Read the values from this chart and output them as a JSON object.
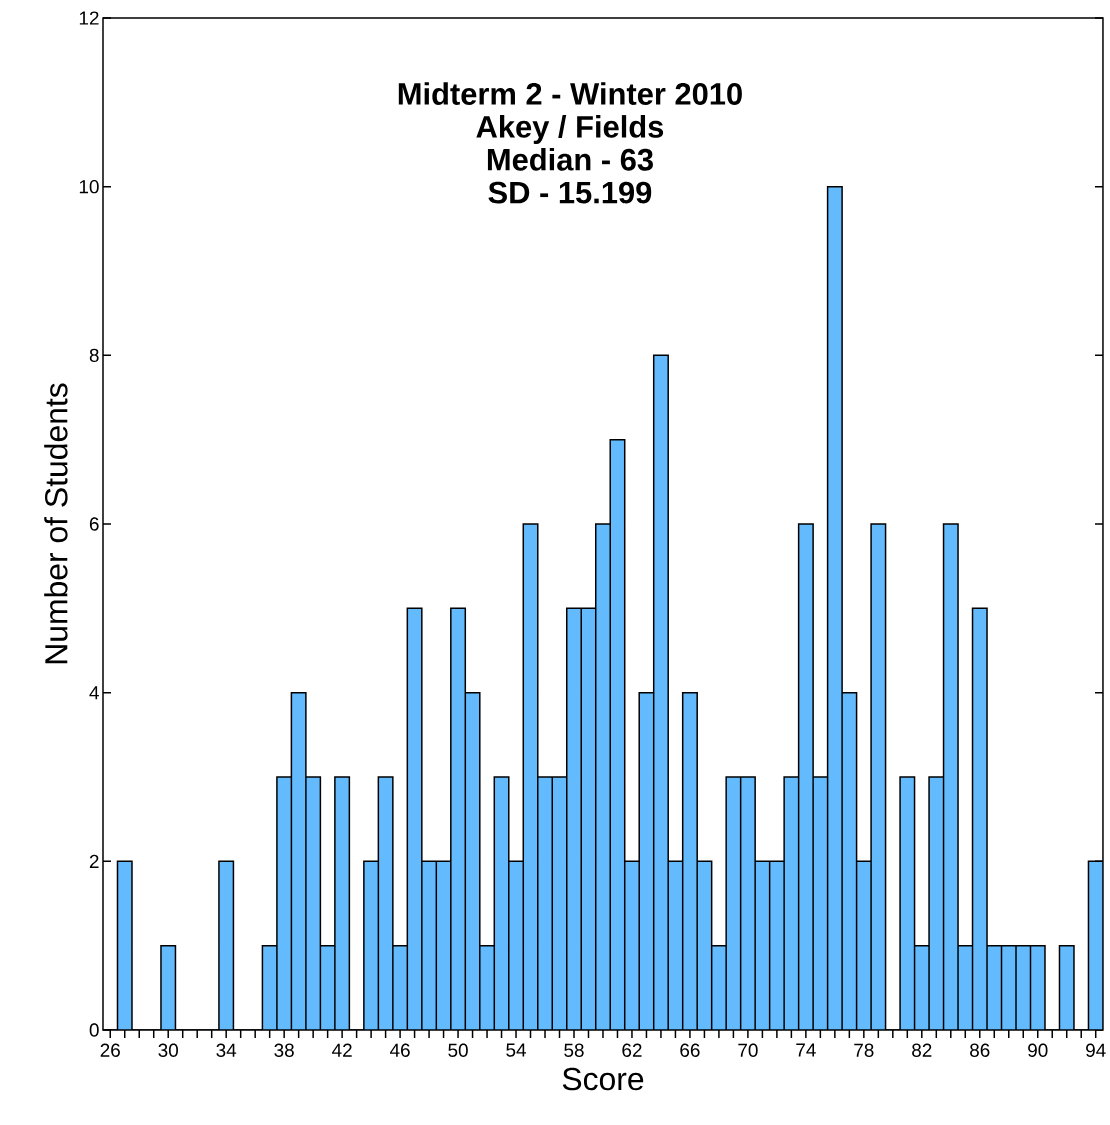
{
  "chart_data": {
    "type": "histogram",
    "title": "Midterm 2 - Winter 2010",
    "subtitle": "Akey / Fields",
    "annotations": [
      "Median - 63",
      "SD - 15.199"
    ],
    "xlabel": "Score",
    "ylabel": "Number of Students",
    "color": "#63bbfd",
    "bins": [
      25.5,
      26.5,
      27.5,
      28.5,
      29.5,
      30.5,
      31.5,
      32.5,
      33.5,
      34.5,
      35.5,
      36.5,
      37.5,
      38.5,
      39.5,
      40.5,
      41.5,
      42.5,
      43.5,
      44.5,
      45.5,
      46.5,
      47.5,
      48.5,
      49.5,
      50.5,
      51.5,
      52.5,
      53.5,
      54.5,
      55.5,
      56.5,
      57.5,
      58.5,
      59.5,
      60.5,
      61.5,
      62.5,
      63.5,
      64.5,
      65.5,
      66.5,
      67.5,
      68.5,
      69.5,
      70.5,
      71.5,
      72.5,
      73.5,
      74.5,
      75.5,
      76.5,
      77.5,
      78.5,
      79.5,
      80.5,
      81.5,
      82.5,
      83.5,
      84.5,
      85.5,
      86.5,
      87.5,
      88.5,
      89.5,
      90.5,
      91.5,
      92.5,
      93.5,
      94.5
    ],
    "values": [
      0,
      2,
      0,
      0,
      1,
      0,
      0,
      0,
      2,
      0,
      0,
      1,
      3,
      4,
      3,
      1,
      3,
      0,
      2,
      3,
      1,
      5,
      2,
      2,
      5,
      4,
      1,
      3,
      2,
      6,
      3,
      3,
      5,
      5,
      6,
      7,
      2,
      4,
      8,
      2,
      4,
      2,
      1,
      3,
      3,
      2,
      2,
      3,
      6,
      3,
      10,
      4,
      2,
      6,
      0,
      3,
      1,
      3,
      6,
      1,
      5,
      1,
      1,
      1,
      1,
      0,
      1,
      0,
      2
    ],
    "xlim": [
      25.5,
      94.5
    ],
    "ylim": [
      0,
      12
    ],
    "xticks": [
      26,
      {
        "value": 27,
        "label": null
      },
      {
        "value": 28,
        "label": null
      },
      {
        "value": 29,
        "label": null
      },
      30,
      {
        "value": 31,
        "label": null
      },
      {
        "value": 32,
        "label": null
      },
      {
        "value": 33,
        "label": null
      },
      34,
      {
        "value": 35,
        "label": null
      },
      {
        "value": 36,
        "label": null
      },
      {
        "value": 37,
        "label": null
      },
      38,
      {
        "value": 39,
        "label": null
      },
      {
        "value": 40,
        "label": null
      },
      {
        "value": 41,
        "label": null
      },
      42,
      {
        "value": 43,
        "label": null
      },
      {
        "value": 44,
        "label": null
      },
      {
        "value": 45,
        "label": null
      },
      46,
      {
        "value": 47,
        "label": null
      },
      {
        "value": 48,
        "label": null
      },
      {
        "value": 49,
        "label": null
      },
      50,
      {
        "value": 51,
        "label": null
      },
      {
        "value": 52,
        "label": null
      },
      {
        "value": 53,
        "label": null
      },
      54,
      {
        "value": 55,
        "label": null
      },
      {
        "value": 56,
        "label": null
      },
      {
        "value": 57,
        "label": null
      },
      58,
      {
        "value": 59,
        "label": null
      },
      {
        "value": 60,
        "label": null
      },
      {
        "value": 61,
        "label": null
      },
      62,
      {
        "value": 63,
        "label": null
      },
      {
        "value": 64,
        "label": null
      },
      {
        "value": 65,
        "label": null
      },
      66,
      {
        "value": 67,
        "label": null
      },
      {
        "value": 68,
        "label": null
      },
      {
        "value": 69,
        "label": null
      },
      70,
      {
        "value": 71,
        "label": null
      },
      {
        "value": 72,
        "label": null
      },
      {
        "value": 73,
        "label": null
      },
      74,
      {
        "value": 75,
        "label": null
      },
      {
        "value": 76,
        "label": null
      },
      {
        "value": 77,
        "label": null
      },
      78,
      {
        "value": 79,
        "label": null
      },
      {
        "value": 80,
        "label": null
      },
      {
        "value": 81,
        "label": null
      },
      82,
      {
        "value": 83,
        "label": null
      },
      {
        "value": 84,
        "label": null
      },
      {
        "value": 85,
        "label": null
      },
      86,
      {
        "value": 87,
        "label": null
      },
      {
        "value": 88,
        "label": null
      },
      {
        "value": 89,
        "label": null
      },
      90,
      {
        "value": 91,
        "label": null
      },
      {
        "value": 92,
        "label": null
      },
      {
        "value": 93,
        "label": null
      },
      94
    ],
    "yticks": [
      0,
      2,
      4,
      6,
      8,
      10,
      12
    ]
  }
}
